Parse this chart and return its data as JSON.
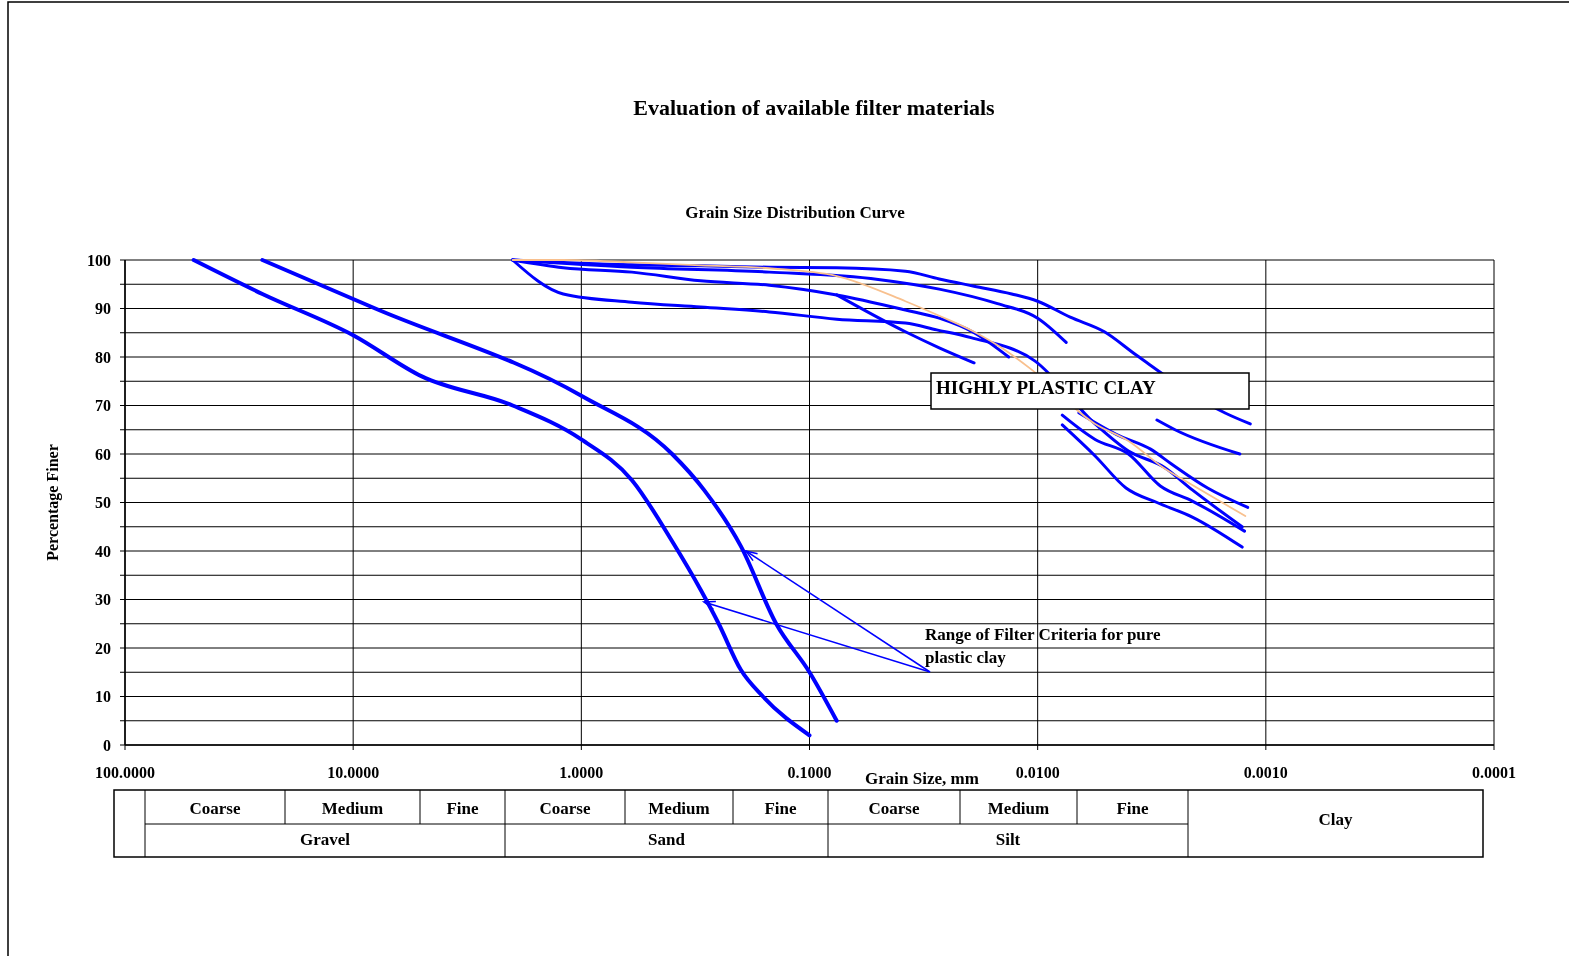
{
  "chart_data": {
    "type": "line",
    "title": "Evaluation of available filter materials",
    "subtitle": "Grain Size Distribution Curve",
    "xlabel": "Grain Size, mm",
    "ylabel": "Percentage Finer",
    "log": "x",
    "xlim": [
      100,
      0.0001
    ],
    "xticks": [
      {
        "value": 100,
        "label": "100.0000"
      },
      {
        "value": 10,
        "label": "10.0000"
      },
      {
        "value": 1,
        "label": "1.0000"
      },
      {
        "value": 0.1,
        "label": "0.1000"
      },
      {
        "value": 0.01,
        "label": "0.0100"
      },
      {
        "value": 0.001,
        "label": "0.0010"
      },
      {
        "value": 0.0001,
        "label": "0.0001"
      }
    ],
    "ylim": [
      0,
      100
    ],
    "yticks": [
      0,
      {
        "value": 5,
        "label": null
      },
      10,
      {
        "value": 15,
        "label": null
      },
      20,
      {
        "value": 25,
        "label": null
      },
      30,
      {
        "value": 35,
        "label": null
      },
      40,
      {
        "value": 45,
        "label": null
      },
      50,
      {
        "value": 55,
        "label": null
      },
      60,
      {
        "value": 65,
        "label": null
      },
      70,
      {
        "value": 75,
        "label": null
      },
      80,
      {
        "value": 85,
        "label": null
      },
      90,
      {
        "value": 95,
        "label": null
      },
      100
    ],
    "grid": true,
    "line_style": "solid",
    "series": [
      {
        "color": "#0000ff",
        "x": [
          50,
          25,
          10,
          5,
          2,
          1,
          0.6,
          0.4,
          0.3,
          0.25,
          0.2,
          0.16,
          0.1
        ],
        "values": [
          100,
          93,
          84.5,
          76,
          70,
          63,
          54.6,
          42,
          32,
          25,
          15.5,
          10,
          2
        ]
      },
      {
        "color": "#0000ff",
        "x": [
          25,
          8,
          1,
          0.4,
          0.29,
          0.2,
          0.14,
          0.1,
          0.076
        ],
        "values": [
          100,
          90,
          72,
          60,
          52.6,
          41,
          25,
          15,
          5
        ]
      },
      {
        "color": "#0000ff",
        "x": [
          2,
          1.2,
          0.6,
          0.3,
          0.15,
          0.076,
          0.038,
          0.027,
          0.019,
          0.013,
          0.01,
          0.0072,
          0.0051,
          0.0037,
          0.0015,
          0.00117
        ],
        "values": [
          100,
          99.5,
          99,
          98.8,
          98.5,
          98.4,
          97.7,
          96.1,
          94.6,
          93,
          91.5,
          88.2,
          85.2,
          80.4,
          68.4,
          66.2
        ]
      },
      {
        "color": "#0000ff",
        "x": [
          2,
          0.6,
          0.15,
          0.05,
          0.027,
          0.015,
          0.01,
          0.0075,
          0.005,
          0.003,
          0.0025,
          0.0013
        ],
        "values": [
          100,
          98.5,
          97.5,
          96,
          94,
          91,
          88,
          83,
          null,
          67,
          65,
          60
        ]
      },
      {
        "color": "#0000ff",
        "x": [
          2,
          1.2,
          0.6,
          0.3,
          0.15,
          0.076,
          0.038,
          0.027,
          0.019,
          0.0134,
          0.0095,
          0.0078,
          0.0056,
          0.0041,
          0.003,
          0.0021,
          0.00127
        ],
        "values": [
          100,
          98.4,
          97.5,
          95.7,
          94.8,
          92.8,
          89.7,
          88,
          85,
          80,
          null,
          66,
          59.6,
          53,
          50,
          47,
          40.8
        ]
      },
      {
        "color": "#0000ff",
        "x": [
          2,
          1.2,
          0.6,
          0.3,
          0.15,
          0.076,
          0.038,
          0.0277,
          0.0196,
          0.0103,
          0.0056,
          0.004,
          0.0028,
          0.0021,
          0.00127
        ],
        "values": [
          100,
          93,
          91.3,
          90.3,
          89.3,
          87.8,
          87,
          85.6,
          84,
          79.2,
          66.2,
          60.6,
          57.3,
          52.6,
          45
        ]
      },
      {
        "color": "#0000ff",
        "x": [
          0.076,
          0.038,
          0.027,
          0.019,
          0.012,
          0.0078,
          0.0056,
          0.004,
          0.0029,
          0.0021,
          0.00124
        ],
        "values": [
          92.8,
          85.2,
          81.9,
          78.8,
          null,
          68,
          63,
          60,
          53.4,
          50.3,
          44.1
        ]
      },
      {
        "color": "#0000ff",
        "x": [
          0.0066,
          0.0045,
          0.0032,
          0.0026,
          0.0018,
          0.0012
        ],
        "values": [
          68.5,
          64,
          61,
          58,
          53,
          49
        ]
      },
      {
        "color": "#f8c08e",
        "x": [
          2,
          1.2,
          0.6,
          0.3,
          0.15,
          0.076,
          0.038,
          0.027,
          0.019,
          0.0144,
          0.0107,
          0.0056,
          0.004,
          0.0028,
          0.0021,
          0.00123
        ],
        "values": [
          100,
          100,
          99.5,
          98.9,
          98.3,
          96.7,
          91.5,
          88.5,
          85.2,
          81.9,
          77.5,
          66.2,
          62.7,
          57.1,
          53.6,
          47.2
        ]
      }
    ],
    "annotations": [
      "HIGHLY PLASTIC CLAY",
      {
        "text": "Range of Filter Criteria for pure plastic clay",
        "x": 0.19,
        "y": 40
      },
      "Coarse",
      "Medium",
      "Fine",
      "Coarse",
      "Medium",
      "Fine",
      "Coarse",
      "Medium",
      "Fine",
      "Clay",
      "Gravel",
      "Sand",
      "Silt"
    ]
  }
}
